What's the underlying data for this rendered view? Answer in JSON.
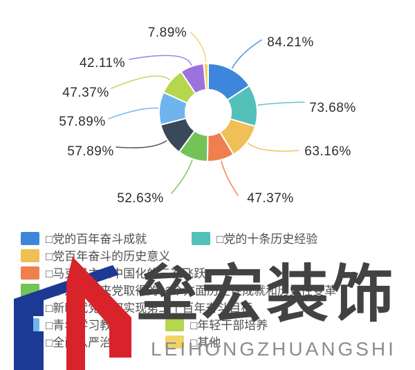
{
  "background_color": "#ffffff",
  "chart_data": {
    "type": "pie",
    "subtype": "donut",
    "title": "",
    "legend_position": "bottom-left",
    "label_format": "percent_2dp",
    "start_angle_deg": 0,
    "series": [
      {
        "name": "□党的百年奋斗成就",
        "value": 84.21,
        "color": "#3d86db"
      },
      {
        "name": "□党的十条历史经验",
        "value": 73.68,
        "color": "#54c0ba"
      },
      {
        "name": "□党百年奋斗的历史意义",
        "value": 63.16,
        "color": "#f0bf55"
      },
      {
        "name": "□马克思主义中国化的三次飞跃",
        "value": 47.37,
        "color": "#ee7f4e"
      },
      {
        "name": "□十八大以来党取得的13个方面历史性成就和历史性变革",
        "value": 52.63,
        "color": "#73c356"
      },
      {
        "name": "□新时代党如何实现第二个百年奋斗目标",
        "value": 57.89,
        "color": "#39495a"
      },
      {
        "name": "□青年学习教育",
        "value": 57.89,
        "color": "#6fb4ef"
      },
      {
        "name": "□年轻干部培养",
        "value": 47.37,
        "color": "#b5d64d"
      },
      {
        "name": "□全面从严治党",
        "value": 42.11,
        "color": "#9c72df"
      },
      {
        "name": "□其他",
        "value": 7.89,
        "color": "#f1d465"
      }
    ]
  },
  "watermark": {
    "title": "垒宏装饰",
    "subtitle": "LEIHONGZHUANGSHI",
    "logo_colors": {
      "blue": "#1c3a94",
      "red": "#d8232a"
    }
  }
}
